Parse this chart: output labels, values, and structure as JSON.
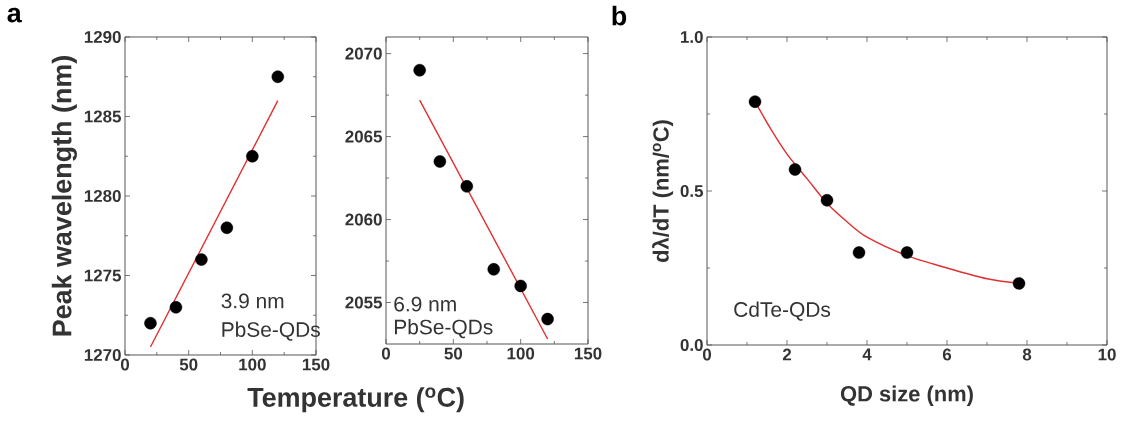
{
  "chart_data": [
    {
      "type": "scatter",
      "title": "a",
      "xlabel": "Temperature ($^{o}$C)",
      "ylabel": "Peak wavelength (nm)",
      "xlim": [
        0,
        150
      ],
      "ylim": [
        1270,
        1290
      ],
      "xticks": [
        0,
        50,
        100,
        150
      ],
      "yticks": [
        1270,
        1275,
        1280,
        1285,
        1290
      ],
      "annotations": [
        "3.9 nm",
        "PbSe-QDs"
      ],
      "series": [
        {
          "type": "scatter",
          "marker": "circle",
          "color": "#000000",
          "x": [
            20,
            40,
            60,
            80,
            100,
            120
          ],
          "values": [
            1272,
            1273,
            1276,
            1278,
            1282.5,
            1287.5
          ]
        },
        {
          "type": "line",
          "color": "#e03030",
          "marker": "none",
          "line_style": "solid",
          "x": [
            20,
            120
          ],
          "values": [
            1270.5,
            1286
          ]
        }
      ]
    },
    {
      "type": "scatter",
      "xlim": [
        0,
        150
      ],
      "ylim": [
        2052.5,
        2071
      ],
      "xticks": [
        0,
        50,
        100,
        150
      ],
      "yticks": [
        2055,
        2060,
        2065,
        2070
      ],
      "annotations": [
        "6.9 nm",
        "PbSe-QDs"
      ],
      "series": [
        {
          "type": "scatter",
          "marker": "circle",
          "color": "#000000",
          "x": [
            25,
            40,
            60,
            80,
            100,
            120
          ],
          "values": [
            2069,
            2063.5,
            2062,
            2057,
            2056,
            2054
          ]
        },
        {
          "type": "line",
          "color": "#e03030",
          "marker": "none",
          "line_style": "solid",
          "x": [
            25,
            120
          ],
          "values": [
            2067.2,
            2052.8
          ]
        }
      ]
    },
    {
      "type": "scatter",
      "title": "b",
      "xlabel": "QD size (nm)",
      "ylabel": "dλ/dT (nm/$^{o}$C)",
      "xlim": [
        0,
        10
      ],
      "ylim": [
        0,
        1
      ],
      "xticks": [
        0,
        2,
        4,
        6,
        8,
        10
      ],
      "yticks": [
        {
          "value": 0,
          "label": "0.0"
        },
        0.5,
        {
          "value": 1,
          "label": "1.0"
        }
      ],
      "annotations": [
        "CdTe-QDs"
      ],
      "series": [
        {
          "type": "scatter",
          "marker": "circle",
          "color": "#000000",
          "x": [
            1.2,
            2.2,
            3,
            3.8,
            5,
            7.8
          ],
          "values": [
            0.79,
            0.57,
            0.47,
            0.3,
            0.3,
            0.2
          ]
        },
        {
          "type": "line",
          "color": "#e03030",
          "marker": "none",
          "line_style": "solid",
          "x": [
            1.2,
            1.6,
            2,
            2.5,
            3,
            3.5,
            4,
            5,
            6,
            7,
            7.8
          ],
          "values": [
            0.79,
            0.7,
            0.62,
            0.54,
            0.46,
            0.4,
            0.35,
            0.29,
            0.25,
            0.215,
            0.2
          ]
        }
      ]
    }
  ]
}
